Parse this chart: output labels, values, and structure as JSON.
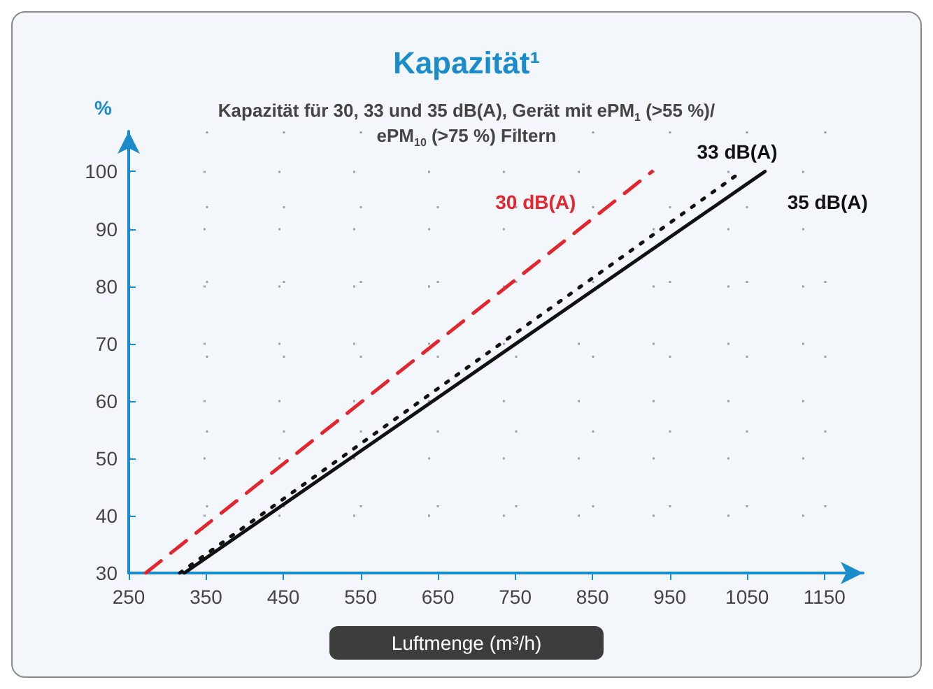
{
  "chart_data": {
    "type": "line",
    "title": "Kapazität¹",
    "subtitle": "Kapazität für 30, 33 und 35 dB(A), Gerät mit ePM$_{1}$ (>55 %)/\nePM$_{10}$ (>75 %) Filtern",
    "xlabel": "Luftmenge (m³/h)",
    "ylabel": "%",
    "series": [
      {
        "name": "30 dB(A)",
        "color": "#e3262d",
        "line_style": "dashed",
        "x": [
          272,
          927
        ],
        "values": [
          30,
          100
        ]
      },
      {
        "name": "33 dB(A)",
        "color": "#111111",
        "line_style": "dotted",
        "x": [
          316,
          1043
        ],
        "values": [
          30,
          100
        ]
      },
      {
        "name": "35 dB(A)",
        "color": "#111111",
        "line_style": "solid",
        "x": [
          322,
          1073
        ],
        "values": [
          30,
          100
        ]
      }
    ],
    "xlim": [
      250,
      1200
    ],
    "xticks": [
      250,
      350,
      450,
      550,
      650,
      750,
      850,
      950,
      1050,
      1150
    ],
    "ylim": [
      30,
      107
    ],
    "yticks": [
      30,
      40,
      50,
      60,
      70,
      80,
      90,
      100
    ],
    "grid": true,
    "legend": false,
    "marker": "none"
  }
}
